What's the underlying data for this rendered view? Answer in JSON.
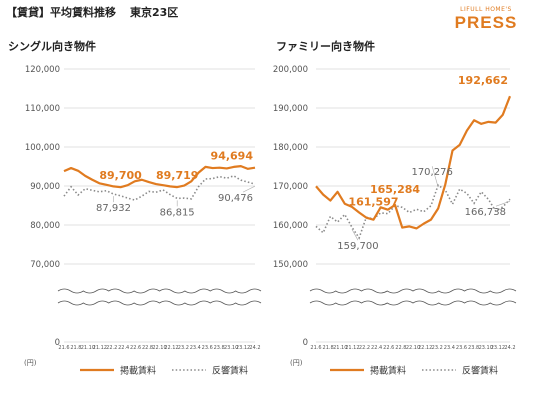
{
  "header": {
    "title": "【賃貸】平均賃料推移",
    "location": "東京23区",
    "brand_small": "LIFULL HOME'S",
    "brand_main": "PRESS"
  },
  "colors": {
    "posted": "#e07b20",
    "response": "#8a8a8a",
    "grid": "#d9d9d9"
  },
  "legend": {
    "posted": "掲載賃料",
    "response": "反響賃料"
  },
  "chart_data": [
    {
      "type": "line",
      "title": "シングル向き物件",
      "unit": "(円)",
      "ylim": [
        0,
        120000
      ],
      "y_ticks": [
        "120,000",
        "110,000",
        "100,000",
        "90,000",
        "80,000",
        "70,000",
        "0"
      ],
      "x_ticks": [
        "21.6",
        "21.8",
        "21.10",
        "21.12",
        "22.2",
        "22.4",
        "22.6",
        "22.8",
        "22.10",
        "22.12",
        "23.2",
        "23.4",
        "23.6",
        "23.8",
        "23.10",
        "23.12",
        "24.2"
      ],
      "series": [
        {
          "name": "掲載賃料",
          "values": [
            93800,
            94600,
            93900,
            92600,
            91600,
            90700,
            90300,
            89900,
            89700,
            90200,
            91200,
            91600,
            91000,
            90500,
            90200,
            89900,
            89719,
            90100,
            91200,
            93400,
            94900,
            94600,
            94700,
            94500,
            94900,
            95100,
            94400,
            94694
          ]
        },
        {
          "name": "反響賃料",
          "values": [
            87400,
            89800,
            87700,
            89300,
            88900,
            88500,
            88800,
            87932,
            87500,
            86900,
            86400,
            87400,
            88600,
            88400,
            89000,
            87800,
            86815,
            86900,
            86700,
            89800,
            91800,
            91900,
            92400,
            92000,
            92600,
            91500,
            91000,
            90476
          ]
        }
      ],
      "annotations": [
        {
          "text": "89,700",
          "series": 0,
          "index": 8
        },
        {
          "text": "89,719",
          "series": 0,
          "index": 16
        },
        {
          "text": "94,694",
          "series": 0,
          "index": 27
        },
        {
          "text": "87,932",
          "series": 1,
          "index": 7
        },
        {
          "text": "86,815",
          "series": 1,
          "index": 16
        },
        {
          "text": "90,476",
          "series": 1,
          "index": 27
        }
      ]
    },
    {
      "type": "line",
      "title": "ファミリー向き物件",
      "unit": "(円)",
      "ylim": [
        0,
        200000
      ],
      "y_ticks": [
        "200,000",
        "190,000",
        "180,000",
        "170,000",
        "160,000",
        "150,000",
        "0"
      ],
      "x_ticks": [
        "21.6",
        "21.8",
        "21.10",
        "21.12",
        "22.2",
        "22.4",
        "22.6",
        "22.8",
        "22.10",
        "22.12",
        "23.2",
        "23.4",
        "23.6",
        "23.8",
        "23.10",
        "23.12",
        "24.2"
      ],
      "series": [
        {
          "name": "掲載賃料",
          "values": [
            170000,
            167900,
            166400,
            168600,
            165600,
            164800,
            163400,
            162100,
            161597,
            164700,
            164100,
            165284,
            159600,
            159900,
            159400,
            160600,
            161600,
            164400,
            170500,
            179000,
            180400,
            184000,
            186600,
            185700,
            186200,
            186000,
            188000,
            192662
          ]
        },
        {
          "name": "反響賃料",
          "values": [
            159900,
            158300,
            162400,
            161000,
            162900,
            159700,
            157000,
            162200,
            161800,
            163300,
            163100,
            165100,
            164700,
            163400,
            164200,
            163600,
            165100,
            170276,
            169000,
            165500,
            169300,
            168200,
            165700,
            168600,
            166700,
            163800,
            164800,
            166738
          ]
        }
      ],
      "annotations": [
        {
          "text": "161,597",
          "series": 0,
          "index": 8
        },
        {
          "text": "165,284",
          "series": 0,
          "index": 11
        },
        {
          "text": "192,662",
          "series": 0,
          "index": 27
        },
        {
          "text": "159,700",
          "series": 1,
          "index": 5
        },
        {
          "text": "170,276",
          "series": 1,
          "index": 17
        },
        {
          "text": "166,738",
          "series": 1,
          "index": 27
        }
      ]
    }
  ]
}
